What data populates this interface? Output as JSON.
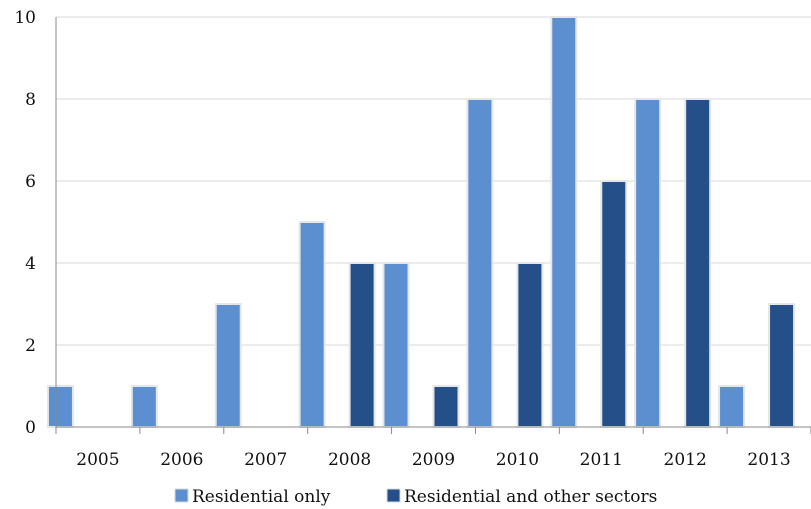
{
  "chart_data": {
    "type": "bar",
    "categories": [
      "2005",
      "2006",
      "2007",
      "2008",
      "2009",
      "2010",
      "2011",
      "2012",
      "2013"
    ],
    "series": [
      {
        "name": "Residential only",
        "values": [
          1,
          1,
          3,
          5,
          4,
          8,
          10,
          8,
          1
        ],
        "color": "#5b8fcf"
      },
      {
        "name": "Residential and other sectors",
        "values": [
          0,
          0,
          0,
          4,
          1,
          4,
          6,
          8,
          3
        ],
        "color": "#254f88"
      }
    ],
    "ylim": [
      0,
      10
    ],
    "yticks": [
      "0",
      "2",
      "4",
      "6",
      "8",
      "10"
    ],
    "grid": true,
    "legend_position": "bottom"
  }
}
